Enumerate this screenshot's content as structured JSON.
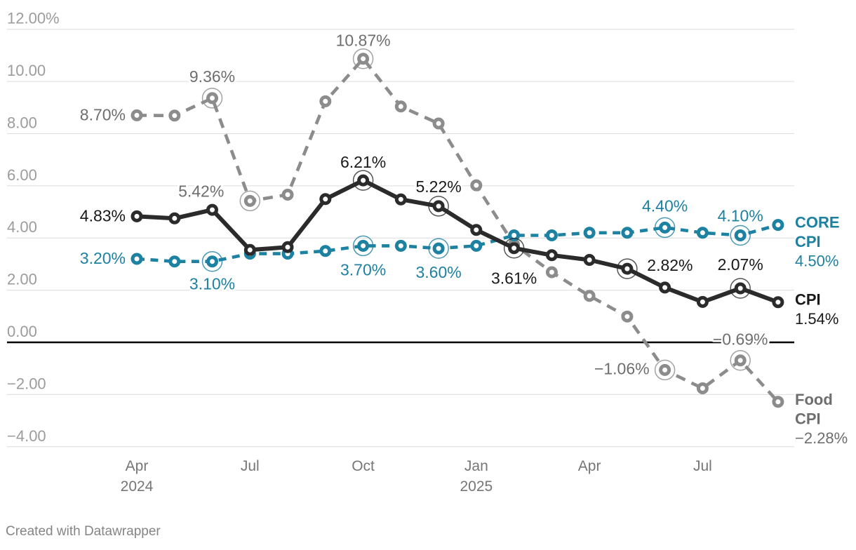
{
  "chart_data": {
    "type": "line",
    "x_axis": {
      "ticks": [
        {
          "label": "Apr",
          "year": "2024",
          "month_index": 0
        },
        {
          "label": "Jul",
          "year": "",
          "month_index": 3
        },
        {
          "label": "Oct",
          "year": "",
          "month_index": 6
        },
        {
          "label": "Jan",
          "year": "2025",
          "month_index": 9
        },
        {
          "label": "Apr",
          "year": "",
          "month_index": 12
        },
        {
          "label": "Jul",
          "year": "",
          "month_index": 15
        }
      ]
    },
    "y_axis": {
      "range": [
        -4,
        12
      ],
      "ticks": [
        {
          "value": 12,
          "label": "12.00%"
        },
        {
          "value": 10,
          "label": "10.00"
        },
        {
          "value": 8,
          "label": "8.00"
        },
        {
          "value": 6,
          "label": "6.00"
        },
        {
          "value": 4,
          "label": "4.00"
        },
        {
          "value": 2,
          "label": "2.00"
        },
        {
          "value": 0,
          "label": "0.00"
        },
        {
          "value": -2,
          "label": "−2.00"
        },
        {
          "value": -4,
          "label": "−4.00"
        }
      ]
    },
    "categories": [
      "Apr 2024",
      "May 2024",
      "Jun 2024",
      "Jul 2024",
      "Aug 2024",
      "Sep 2024",
      "Oct 2024",
      "Nov 2024",
      "Dec 2024",
      "Jan 2025",
      "Feb 2025",
      "Mar 2025",
      "Apr 2025",
      "May 2025",
      "Jun 2025",
      "Jul 2025",
      "Aug 2025",
      "Sep 2025"
    ],
    "series": [
      {
        "id": "food-cpi",
        "name": "Food CPI",
        "color": "#8c8c8c",
        "label_color": "#6e6e6e",
        "dash": "14 10",
        "line_width": 4.6,
        "values": [
          8.7,
          8.69,
          9.36,
          5.42,
          5.66,
          9.24,
          10.87,
          9.04,
          8.39,
          6.02,
          3.75,
          2.69,
          1.78,
          0.99,
          -1.06,
          -1.76,
          -0.69,
          -2.28
        ],
        "point_labels": [
          {
            "index": 0,
            "text": "8.70%",
            "anchor": "end",
            "dx": -16,
            "dy": 7,
            "ring": false
          },
          {
            "index": 2,
            "text": "9.36%",
            "anchor": "middle",
            "dx": 0,
            "dy": -23,
            "ring": true
          },
          {
            "index": 3,
            "text": "5.42%",
            "anchor": "end",
            "dx": -37,
            "dy": -6,
            "ring": true
          },
          {
            "index": 6,
            "text": "10.87%",
            "anchor": "middle",
            "dx": 0,
            "dy": -18,
            "ring": true
          },
          {
            "index": 14,
            "text": "−1.06%",
            "anchor": "end",
            "dx": -22,
            "dy": 6,
            "ring": true
          },
          {
            "index": 16,
            "text": "−0.69%",
            "anchor": "middle",
            "dx": 0,
            "dy": -22,
            "ring": true
          }
        ],
        "end_label": {
          "lines": [
            "Food",
            "CPI"
          ],
          "value": "−2.28%"
        }
      },
      {
        "id": "core-cpi",
        "name": "CORE CPI",
        "color": "#1d81a2",
        "label_color": "#1d81a2",
        "dash": "11 8.5",
        "line_width": 4.6,
        "values": [
          3.2,
          3.1,
          3.1,
          3.4,
          3.4,
          3.5,
          3.7,
          3.7,
          3.6,
          3.7,
          4.1,
          4.1,
          4.2,
          4.2,
          4.4,
          4.2,
          4.1,
          4.5
        ],
        "point_labels": [
          {
            "index": 0,
            "text": "3.20%",
            "anchor": "end",
            "dx": -16,
            "dy": 7,
            "ring": false
          },
          {
            "index": 2,
            "text": "3.10%",
            "anchor": "middle",
            "dx": 0,
            "dy": 40,
            "ring": true
          },
          {
            "index": 6,
            "text": "3.70%",
            "anchor": "middle",
            "dx": 0,
            "dy": 42,
            "ring": true
          },
          {
            "index": 8,
            "text": "3.60%",
            "anchor": "middle",
            "dx": 0,
            "dy": 42,
            "ring": true
          },
          {
            "index": 14,
            "text": "4.40%",
            "anchor": "middle",
            "dx": 0,
            "dy": -23,
            "ring": true
          },
          {
            "index": 16,
            "text": "4.10%",
            "anchor": "middle",
            "dx": 0,
            "dy": -20,
            "ring": true
          }
        ],
        "end_label": {
          "lines": [
            "CORE",
            "CPI"
          ],
          "value": "4.50%"
        }
      },
      {
        "id": "cpi",
        "name": "CPI",
        "color": "#2b2b2b",
        "label_color": "#191919",
        "dash": null,
        "line_width": 6,
        "values": [
          4.83,
          4.75,
          5.08,
          3.54,
          3.65,
          5.49,
          6.21,
          5.48,
          5.22,
          4.31,
          3.61,
          3.34,
          3.16,
          2.82,
          2.1,
          1.55,
          2.07,
          1.54
        ],
        "point_labels": [
          {
            "index": 0,
            "text": "4.83%",
            "anchor": "end",
            "dx": -16,
            "dy": 7,
            "ring": false
          },
          {
            "index": 6,
            "text": "6.21%",
            "anchor": "middle",
            "dx": 0,
            "dy": -18,
            "ring": true
          },
          {
            "index": 8,
            "text": "5.22%",
            "anchor": "middle",
            "dx": 0,
            "dy": -20,
            "ring": true
          },
          {
            "index": 10,
            "text": "3.61%",
            "anchor": "middle",
            "dx": 0,
            "dy": 51,
            "ring": true
          },
          {
            "index": 13,
            "text": "2.82%",
            "anchor": "middle",
            "dx": 61,
            "dy": 3,
            "ring": true
          },
          {
            "index": 16,
            "text": "2.07%",
            "anchor": "middle",
            "dx": 0,
            "dy": -26,
            "ring": true
          }
        ],
        "end_label": {
          "lines": [
            "CPI"
          ],
          "value": "1.54%"
        }
      }
    ],
    "footer": "Created with Datawrapper"
  }
}
